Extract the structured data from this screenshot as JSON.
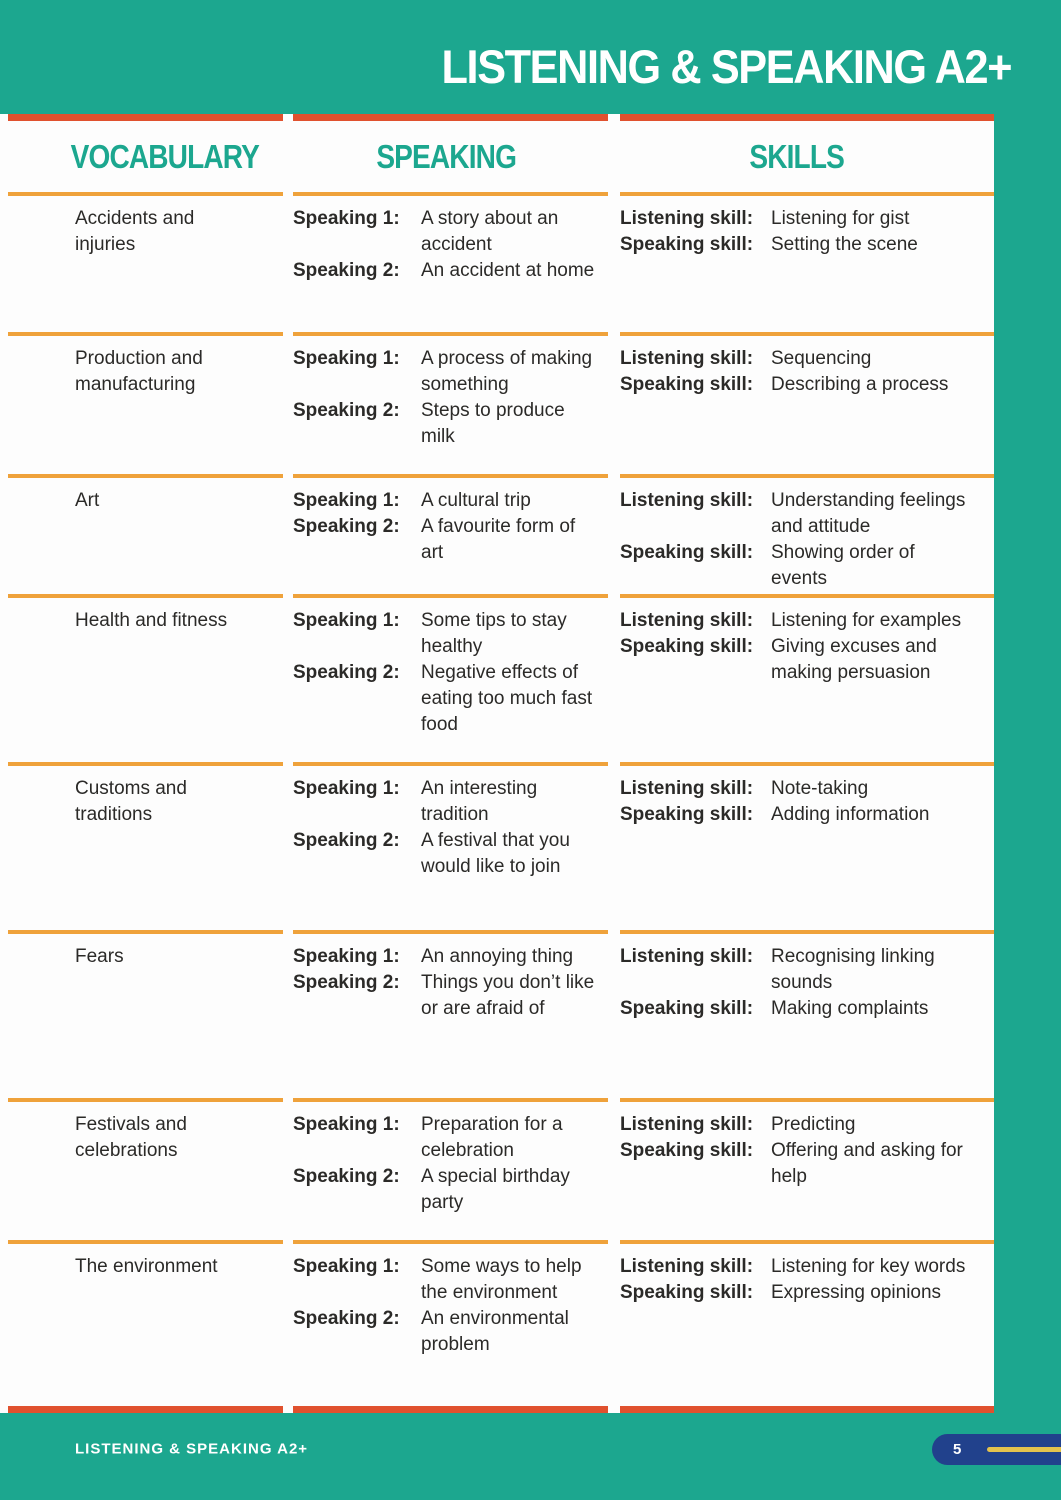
{
  "page": {
    "title": "LISTENING & SPEAKING A2+",
    "footer": {
      "label": "LISTENING & SPEAKING A2+",
      "page_number": "5"
    }
  },
  "table": {
    "headers": [
      "VOCABULARY",
      "SPEAKING",
      "SKILLS"
    ],
    "rows": [
      {
        "vocabulary": "Accidents and injuries",
        "speaking": [
          {
            "label": "Speaking 1:",
            "text": "A story about an accident"
          },
          {
            "label": "Speaking 2:",
            "text": "An accident at home"
          }
        ],
        "skills": [
          {
            "label": "Listening skill:",
            "text": "Listening for gist"
          },
          {
            "label": "Speaking skill:",
            "text": "Setting the scene"
          }
        ]
      },
      {
        "vocabulary": "Production and manufacturing",
        "speaking": [
          {
            "label": "Speaking 1:",
            "text": "A process of making something"
          },
          {
            "label": "Speaking 2:",
            "text": "Steps to produce milk"
          }
        ],
        "skills": [
          {
            "label": "Listening skill:",
            "text": "Sequencing"
          },
          {
            "label": "Speaking skill:",
            "text": "Describing a process"
          }
        ]
      },
      {
        "vocabulary": "Art",
        "speaking": [
          {
            "label": "Speaking 1:",
            "text": "A cultural trip"
          },
          {
            "label": "Speaking 2:",
            "text": "A favourite form of art"
          }
        ],
        "skills": [
          {
            "label": "Listening skill:",
            "text": "Understanding feelings and attitude"
          },
          {
            "label": "Speaking skill:",
            "text": "Showing order of events"
          }
        ]
      },
      {
        "vocabulary": "Health and fitness",
        "speaking": [
          {
            "label": "Speaking 1:",
            "text": "Some tips to stay healthy"
          },
          {
            "label": "Speaking 2:",
            "text": "Negative effects of eating too much fast food"
          }
        ],
        "skills": [
          {
            "label": "Listening skill:",
            "text": "Listening for examples"
          },
          {
            "label": "Speaking skill:",
            "text": "Giving excuses and making persuasion"
          }
        ]
      },
      {
        "vocabulary": "Customs and traditions",
        "speaking": [
          {
            "label": "Speaking 1:",
            "text": "An interesting tradition"
          },
          {
            "label": "Speaking 2:",
            "text": "A festival that you would like to join"
          }
        ],
        "skills": [
          {
            "label": "Listening skill:",
            "text": "Note-taking"
          },
          {
            "label": "Speaking skill:",
            "text": "Adding information"
          }
        ]
      },
      {
        "vocabulary": "Fears",
        "speaking": [
          {
            "label": "Speaking 1:",
            "text": "An annoying thing"
          },
          {
            "label": "Speaking 2:",
            "text": "Things you don’t like or are afraid of"
          }
        ],
        "skills": [
          {
            "label": "Listening skill:",
            "text": "Recognising linking sounds"
          },
          {
            "label": "Speaking skill:",
            "text": "Making complaints"
          }
        ]
      },
      {
        "vocabulary": "Festivals and celebrations",
        "speaking": [
          {
            "label": "Speaking 1:",
            "text": "Preparation for a celebration"
          },
          {
            "label": "Speaking 2:",
            "text": "A special birthday party"
          }
        ],
        "skills": [
          {
            "label": "Listening skill:",
            "text": "Predicting"
          },
          {
            "label": "Speaking skill:",
            "text": "Offering and asking for help"
          }
        ]
      },
      {
        "vocabulary": "The environment",
        "speaking": [
          {
            "label": "Speaking 1:",
            "text": "Some ways to help the environment"
          },
          {
            "label": "Speaking 2:",
            "text": "An environmental problem"
          }
        ],
        "skills": [
          {
            "label": "Listening skill:",
            "text": "Listening for key words"
          },
          {
            "label": "Speaking skill:",
            "text": "Expressing opinions"
          }
        ]
      }
    ]
  },
  "colors": {
    "teal": "#1CA78F",
    "red_orange": "#E0512E",
    "orange": "#EFA23B",
    "ink": "#2B2A28",
    "footer_blue": "#21418C",
    "badge_yellow": "#E3C24D"
  }
}
